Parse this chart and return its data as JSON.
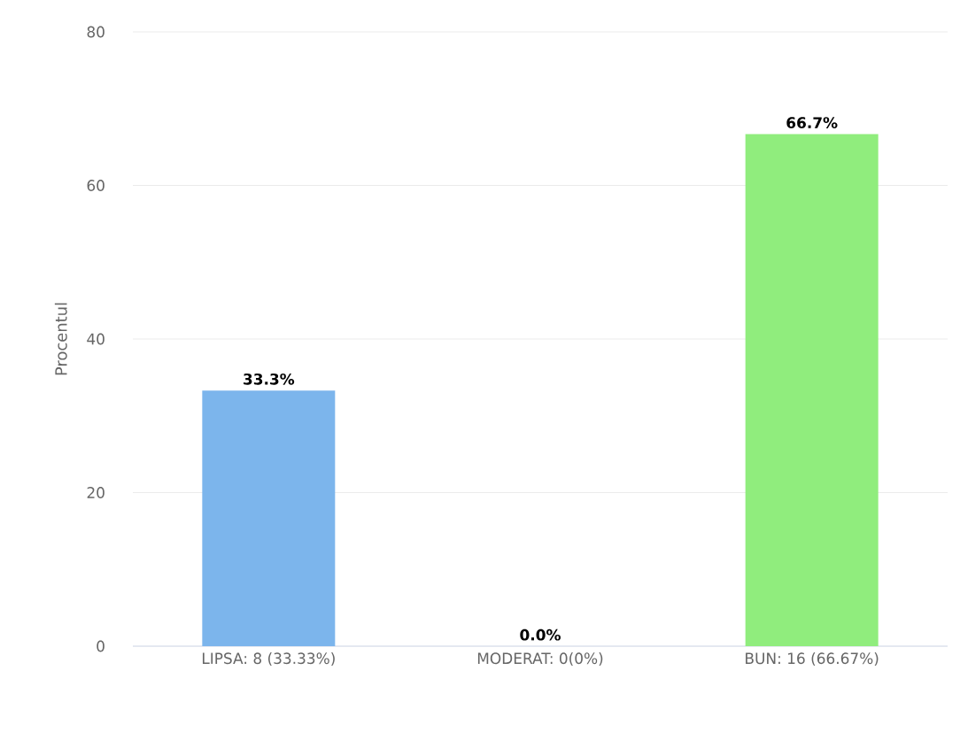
{
  "chart_data": {
    "type": "bar",
    "ylabel": "Procentul",
    "categories": [
      "LIPSA: 8 (33.33%)",
      "MODERAT: 0(0%)",
      "BUN: 16 (66.67%)"
    ],
    "values": [
      33.3,
      0,
      66.7
    ],
    "colors": [
      "#7cb5ec",
      "#b0b0b0",
      "#90ed7d"
    ],
    "value_labels": [
      "33.3%",
      "0.0%",
      "66.7%"
    ],
    "ylim": [
      0,
      80
    ],
    "yticks": [
      0,
      20,
      40,
      60,
      80
    ],
    "grid": "y"
  }
}
